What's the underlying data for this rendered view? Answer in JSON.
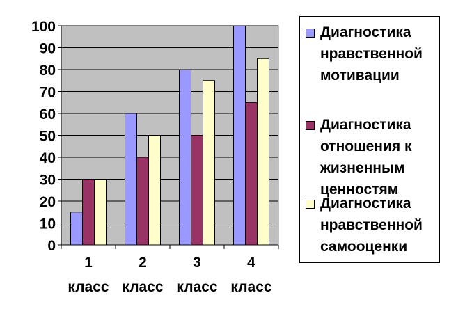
{
  "chart_data": {
    "type": "bar",
    "categories": [
      "1\nкласс",
      "2\nкласс",
      "3\nкласс",
      "4\nкласс"
    ],
    "series": [
      {
        "name": "Диагностика нравственной мотивации",
        "values": [
          15,
          60,
          80,
          100
        ],
        "color": "#9999ff"
      },
      {
        "name": "Диагностика отношения к жизненным ценностям",
        "values": [
          30,
          40,
          50,
          65
        ],
        "color": "#993366"
      },
      {
        "name": "Диагностика нравственной самооценки",
        "values": [
          30,
          50,
          75,
          85
        ],
        "color": "#ffffcc"
      }
    ],
    "ylim": [
      0,
      100
    ],
    "yticks": [
      0,
      10,
      20,
      30,
      40,
      50,
      60,
      70,
      80,
      90,
      100
    ],
    "grid": true,
    "plot_background": "#c0c0c0",
    "legend_position": "right"
  },
  "legend": {
    "items": [
      {
        "label": "Диагностика\nнравственной\nмотивации",
        "color": "#9999ff"
      },
      {
        "label": "Диагностика\nотношения к\nжизненным\nценностям",
        "color": "#993366"
      },
      {
        "label": "Диагностика\nнравственной\nсамооценки",
        "color": "#ffffcc"
      }
    ]
  }
}
